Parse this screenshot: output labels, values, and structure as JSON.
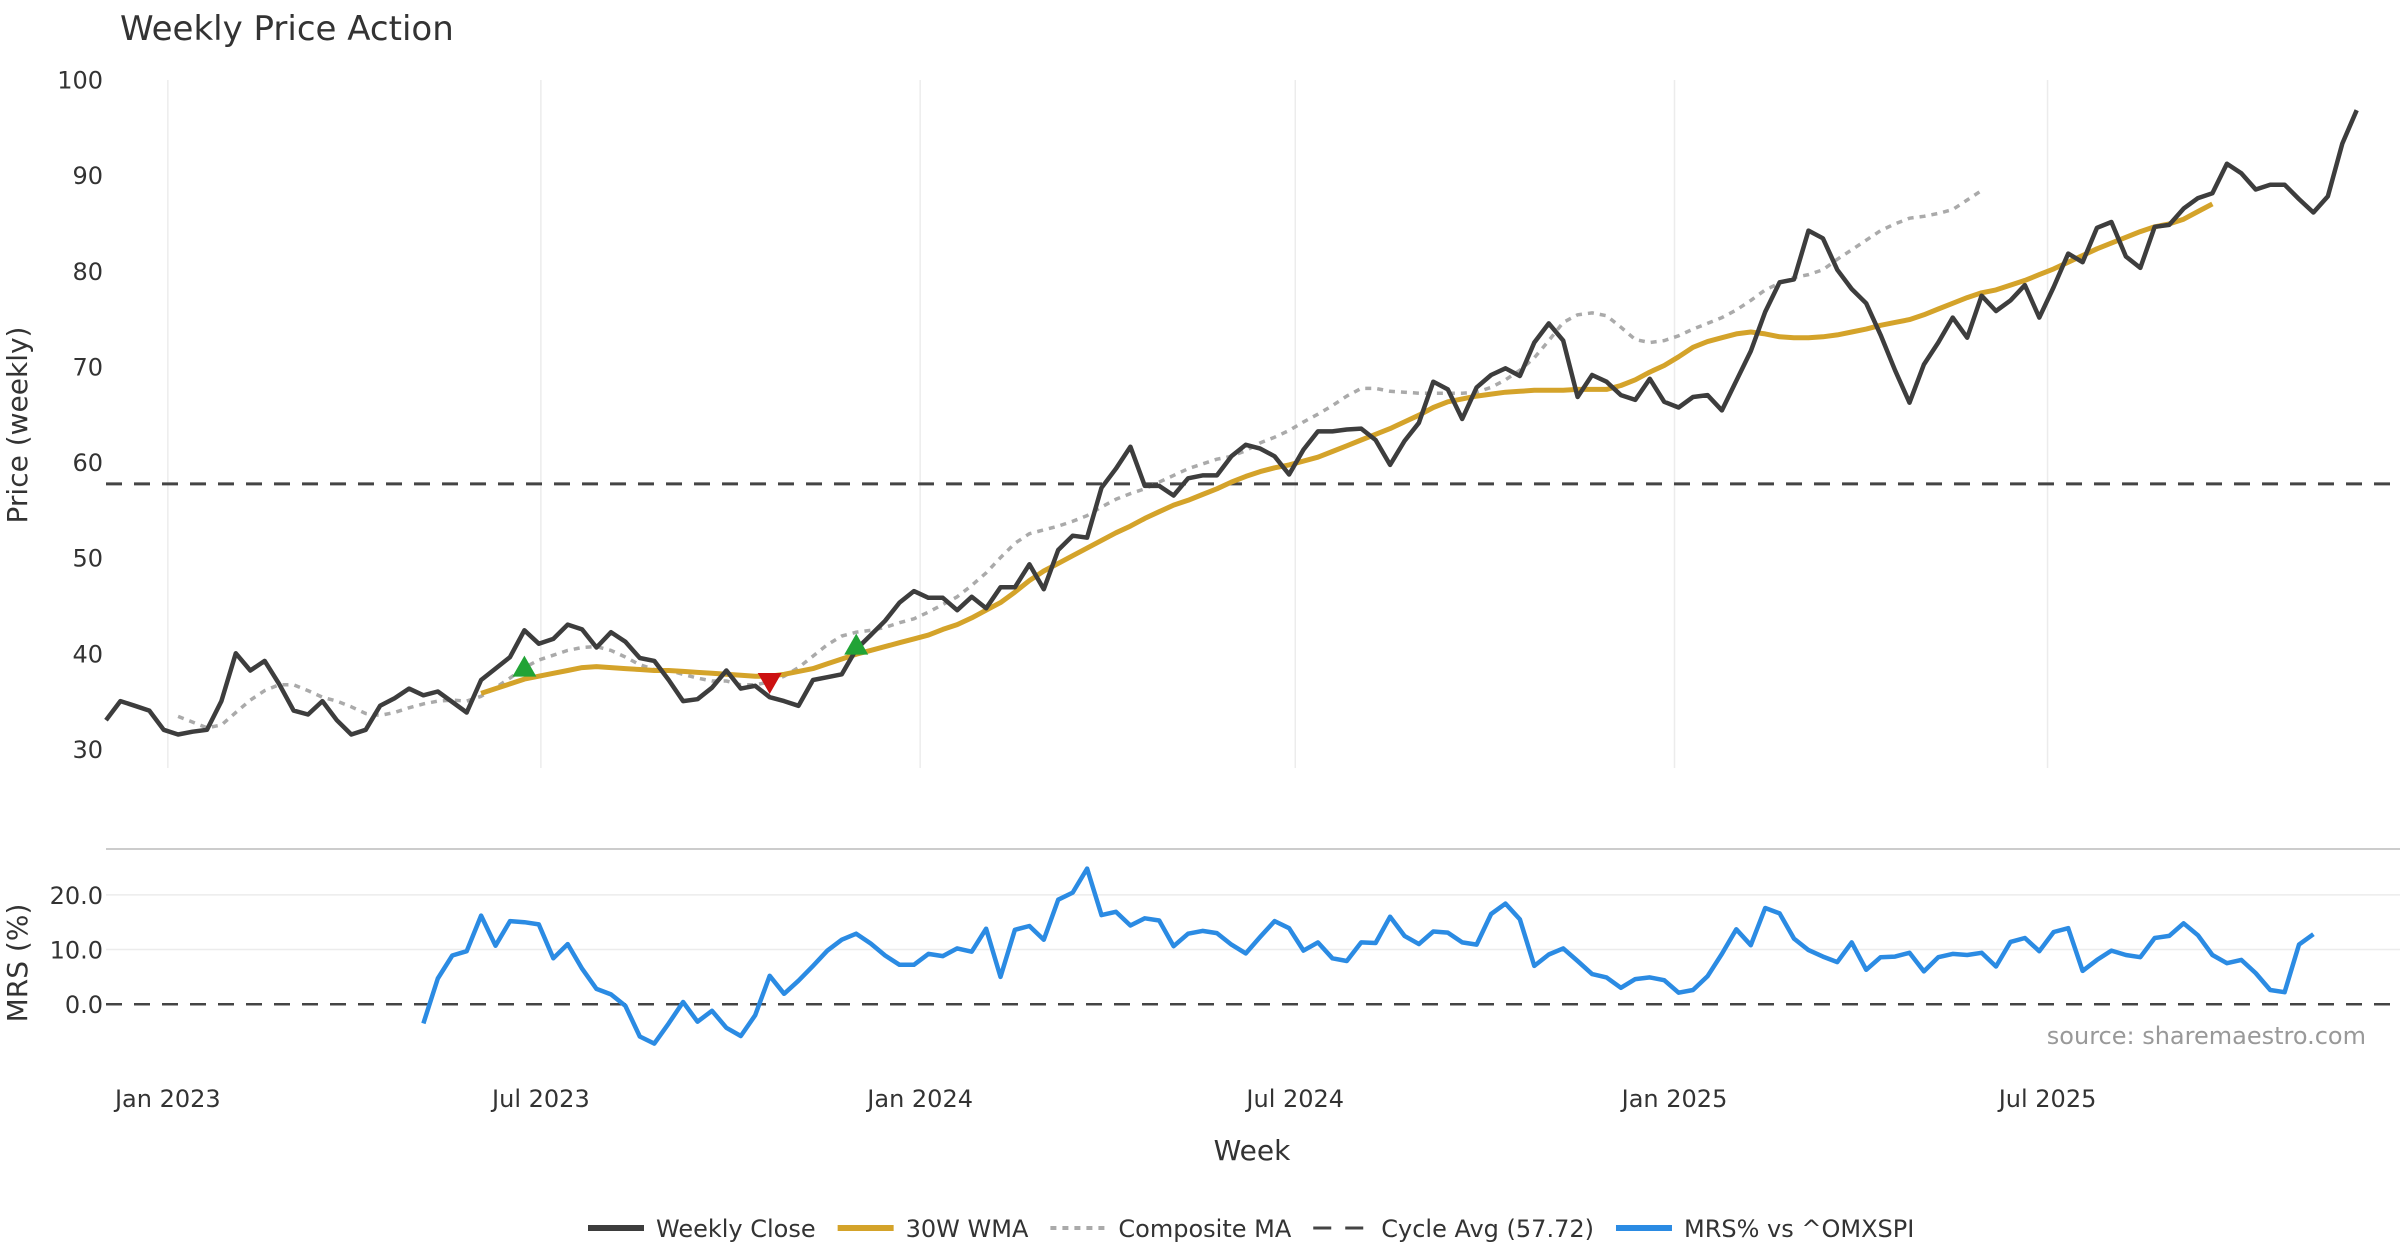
{
  "chart_data": [
    {
      "type": "line",
      "title": "Weekly Price Action",
      "ylabel": "Price (weekly)",
      "xlabel": "Week",
      "ylim": [
        28,
        101
      ],
      "yticks": [
        30,
        40,
        50,
        60,
        70,
        80,
        90,
        100
      ],
      "x_ticks": [
        "Jan 2023",
        "Jul 2023",
        "Jan 2024",
        "Jul 2024",
        "Jan 2025",
        "Jul 2025"
      ],
      "x_range": [
        "2022-12-02",
        "2025-12-19"
      ],
      "grid": "vertical",
      "series": [
        {
          "name": "Weekly Close",
          "color": "#3d3d3d",
          "style": "solid",
          "start": "2022-12-02",
          "step_days": 7,
          "values": [
            33.0,
            35.0,
            34.5,
            34.0,
            32.0,
            31.5,
            31.8,
            32.0,
            35.0,
            40.0,
            38.2,
            39.2,
            36.8,
            34.0,
            33.6,
            35.0,
            33.0,
            31.5,
            32.0,
            34.5,
            35.3,
            36.3,
            35.6,
            36.0,
            34.9,
            33.8,
            37.2,
            38.4,
            39.6,
            42.4,
            41.0,
            41.5,
            43.0,
            42.5,
            40.6,
            42.2,
            41.2,
            39.5,
            39.2,
            37.2,
            35.0,
            35.2,
            36.4,
            38.2,
            36.3,
            36.6,
            35.4,
            35.0,
            34.5,
            37.2,
            37.5,
            37.8,
            40.4,
            41.9,
            43.4,
            45.3,
            46.5,
            45.8,
            45.8,
            44.5,
            45.9,
            44.7,
            46.9,
            46.9,
            49.3,
            46.7,
            50.8,
            52.3,
            52.1,
            57.3,
            59.3,
            61.6,
            57.5,
            57.5,
            56.5,
            58.3,
            58.6,
            58.6,
            60.6,
            61.8,
            61.4,
            60.6,
            58.7,
            61.3,
            63.2,
            63.2,
            63.4,
            63.5,
            62.3,
            59.7,
            62.2,
            64.1,
            68.4,
            67.6,
            64.5,
            67.8,
            69.1,
            69.8,
            69.0,
            72.5,
            74.5,
            72.7,
            66.8,
            69.1,
            68.4,
            67.0,
            66.5,
            68.7,
            66.3,
            65.7,
            66.8,
            67.0,
            65.4,
            68.5,
            71.6,
            75.7,
            78.8,
            79.1,
            84.2,
            83.4,
            80.1,
            78.1,
            76.6,
            73.3,
            69.6,
            66.2,
            70.2,
            72.5,
            75.1,
            73.0,
            77.4,
            75.8,
            76.9,
            78.5,
            75.1,
            78.3,
            81.8,
            80.9,
            84.5,
            85.1,
            81.5,
            80.3,
            84.6,
            84.8,
            86.5,
            87.6,
            88.1,
            91.2,
            90.2,
            88.5,
            89.0,
            89.0,
            87.5,
            86.1,
            87.8,
            93.3,
            96.8
          ]
        },
        {
          "name": "30W WMA",
          "color": "#d4a32a",
          "style": "solid",
          "start": "2023-06-02",
          "step_days": 7,
          "values": [
            35.8,
            36.3,
            36.8,
            37.3,
            37.6,
            37.9,
            38.2,
            38.5,
            38.6,
            38.5,
            38.4,
            38.3,
            38.2,
            38.2,
            38.1,
            38.0,
            37.9,
            37.8,
            37.7,
            37.6,
            37.6,
            37.8,
            38.1,
            38.4,
            38.9,
            39.4,
            39.9,
            40.3,
            40.7,
            41.1,
            41.5,
            41.9,
            42.5,
            43.0,
            43.7,
            44.5,
            45.3,
            46.4,
            47.6,
            48.6,
            49.4,
            50.2,
            51.0,
            51.8,
            52.6,
            53.3,
            54.1,
            54.8,
            55.5,
            56.0,
            56.6,
            57.2,
            57.9,
            58.5,
            59.0,
            59.4,
            59.7,
            60.1,
            60.5,
            61.1,
            61.7,
            62.3,
            62.9,
            63.5,
            64.2,
            64.9,
            65.7,
            66.3,
            66.6,
            66.9,
            67.1,
            67.3,
            67.4,
            67.5,
            67.5,
            67.5,
            67.6,
            67.6,
            67.6,
            68.0,
            68.6,
            69.4,
            70.1,
            71.0,
            72.0,
            72.6,
            73.0,
            73.4,
            73.6,
            73.4,
            73.1,
            73.0,
            73.0,
            73.1,
            73.3,
            73.6,
            73.9,
            74.3,
            74.6,
            74.9,
            75.4,
            76.0,
            76.6,
            77.2,
            77.7,
            78.0,
            78.5,
            79.0,
            79.6,
            80.2,
            80.9,
            81.6,
            82.3,
            82.9,
            83.5,
            84.1,
            84.6,
            84.9,
            85.4,
            86.2,
            87.0
          ]
        },
        {
          "name": "Composite MA",
          "color": "#aaaaaa",
          "style": "dotted",
          "start": "2023-01-06",
          "step_days": 7,
          "values": [
            33.4,
            32.8,
            32.2,
            32.5,
            33.8,
            35.1,
            36.1,
            36.7,
            36.7,
            36.1,
            35.4,
            35.0,
            34.4,
            33.7,
            33.5,
            33.8,
            34.3,
            34.7,
            35.0,
            35.1,
            35.0,
            35.5,
            36.4,
            37.4,
            38.5,
            39.3,
            39.8,
            40.3,
            40.6,
            40.7,
            40.3,
            39.6,
            38.8,
            38.3,
            38.2,
            37.8,
            37.4,
            37.1,
            37.1,
            36.7,
            36.7,
            37.0,
            37.6,
            38.5,
            39.7,
            40.9,
            41.8,
            42.2,
            42.4,
            42.7,
            43.2,
            43.6,
            44.3,
            45.1,
            45.9,
            47.1,
            48.4,
            50.0,
            51.5,
            52.5,
            52.9,
            53.3,
            53.8,
            54.4,
            55.3,
            56.1,
            56.7,
            57.2,
            57.9,
            58.6,
            59.3,
            59.8,
            60.3,
            60.6,
            61.2,
            62.0,
            62.6,
            63.3,
            64.2,
            65.0,
            65.9,
            66.9,
            67.7,
            67.7,
            67.4,
            67.3,
            67.2,
            67.2,
            67.2,
            67.2,
            67.3,
            67.8,
            68.6,
            69.6,
            70.9,
            72.7,
            74.6,
            75.4,
            75.6,
            75.3,
            74.1,
            72.8,
            72.5,
            72.7,
            73.2,
            73.9,
            74.5,
            75.1,
            75.9,
            76.9,
            78.0,
            78.7,
            79.3,
            79.6,
            80.1,
            81.2,
            82.2,
            83.2,
            84.2,
            84.9,
            85.5,
            85.7,
            86.0,
            86.4,
            87.4,
            88.4
          ]
        },
        {
          "name": "Cycle Avg (57.72)",
          "color": "#444444",
          "style": "dashed",
          "constant": 57.72
        }
      ],
      "markers": [
        {
          "type": "buy",
          "date": "2023-06-23",
          "value": 38.5,
          "color": "#21a336"
        },
        {
          "type": "sell",
          "date": "2023-10-20",
          "value": 37.0,
          "color": "#cc1111"
        },
        {
          "type": "buy",
          "date": "2023-12-01",
          "value": 40.8,
          "color": "#21a336"
        }
      ]
    },
    {
      "type": "line",
      "ylabel": "MRS (%)",
      "ylim": [
        -8,
        26
      ],
      "yticks": [
        "0.0",
        "10.0",
        "20.0"
      ],
      "zero_line": true,
      "series": [
        {
          "name": "MRS% vs ^OMXSPI",
          "color": "#2b8be3",
          "style": "solid",
          "start": "2023-05-05",
          "step_days": 7,
          "values": [
            -3.5,
            4.7,
            8.9,
            9.7,
            16.2,
            10.7,
            15.2,
            15.0,
            14.6,
            8.4,
            11.0,
            6.5,
            2.8,
            1.8,
            -0.3,
            -5.9,
            -7.2,
            -3.5,
            0.4,
            -3.2,
            -1.2,
            -4.3,
            -5.8,
            -2.0,
            5.2,
            1.9,
            4.3,
            7.0,
            9.8,
            11.8,
            12.9,
            11.1,
            8.9,
            7.2,
            7.2,
            9.2,
            8.8,
            10.2,
            9.6,
            13.8,
            5.0,
            13.6,
            14.3,
            11.8,
            19.1,
            20.4,
            24.8,
            16.3,
            16.9,
            14.4,
            15.7,
            15.3,
            10.6,
            12.9,
            13.4,
            13.0,
            10.9,
            9.3,
            12.3,
            15.2,
            13.9,
            9.8,
            11.3,
            8.4,
            7.9,
            11.3,
            11.2,
            16.0,
            12.5,
            11.0,
            13.3,
            13.1,
            11.3,
            10.9,
            16.5,
            18.4,
            15.5,
            7.0,
            9.1,
            10.2,
            7.9,
            5.5,
            4.9,
            3.0,
            4.6,
            4.9,
            4.4,
            2.1,
            2.6,
            5.1,
            9.2,
            13.7,
            10.8,
            17.6,
            16.6,
            12.0,
            9.9,
            8.7,
            7.7,
            11.3,
            6.3,
            8.6,
            8.7,
            9.4,
            6.0,
            8.6,
            9.2,
            9.0,
            9.4,
            6.9,
            11.4,
            12.1,
            9.7,
            13.2,
            13.9,
            6.1,
            8.1,
            9.8,
            9.0,
            8.6,
            12.1,
            12.5,
            14.8,
            12.6,
            9.0,
            7.5,
            8.1,
            5.7,
            2.6,
            2.2,
            10.9,
            12.8
          ]
        }
      ]
    }
  ],
  "source_text": "source: sharemaestro.com"
}
